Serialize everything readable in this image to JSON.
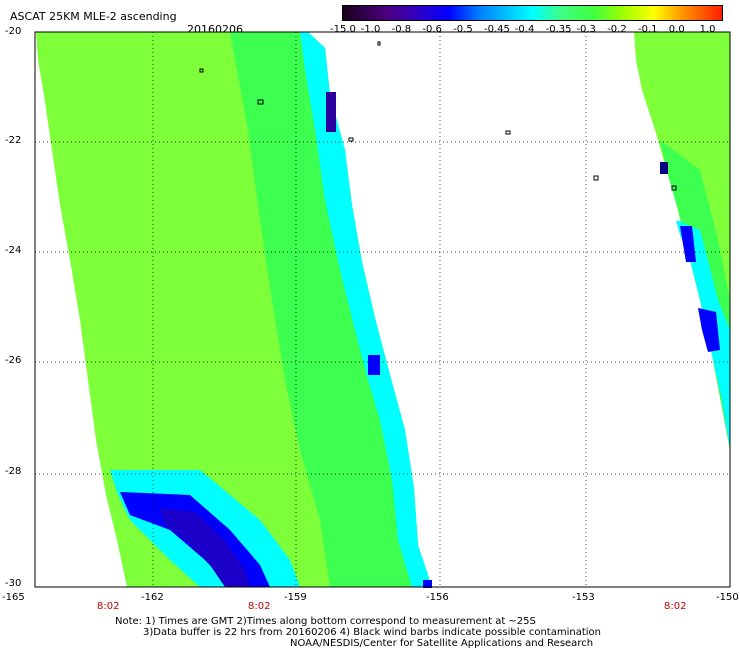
{
  "header": {
    "title": "ASCAT 25KM MLE-2 ascending",
    "date": "20160206"
  },
  "colorbar": {
    "ticks": [
      "-15.0",
      "-1.0",
      "-0.8",
      "-0.6",
      "-0.5",
      "-0.45",
      "-0.4",
      "-0.35",
      "-0.3",
      "-0.2",
      "-0.1",
      "0.0",
      "1.0"
    ]
  },
  "axes": {
    "lat_labels": [
      "-20",
      "-22",
      "-24",
      "-26",
      "-28",
      "-30"
    ],
    "lon_labels": [
      "-165",
      "-162",
      "-159",
      "-156",
      "-153",
      "-150"
    ],
    "pass_times": [
      "8:02",
      "8:02",
      "8:02"
    ]
  },
  "colors": {
    "main_field": "#7dff3a",
    "field_green": "#3cff50",
    "cyan": "#00ffff",
    "blue": "#0000ff",
    "deep_purple": "#2a00a0",
    "grid": "#000000",
    "pass_time": "#c00000"
  },
  "notes": [
    "Note: 1) Times are GMT 2)Times along bottom correspond to measurement at ~25S",
    "3)Data buffer is 22 hrs from 20160206 4) Black wind barbs indicate possible contamination",
    "NOAA/NESDIS/Center for Satellite Applications and Research"
  ]
}
